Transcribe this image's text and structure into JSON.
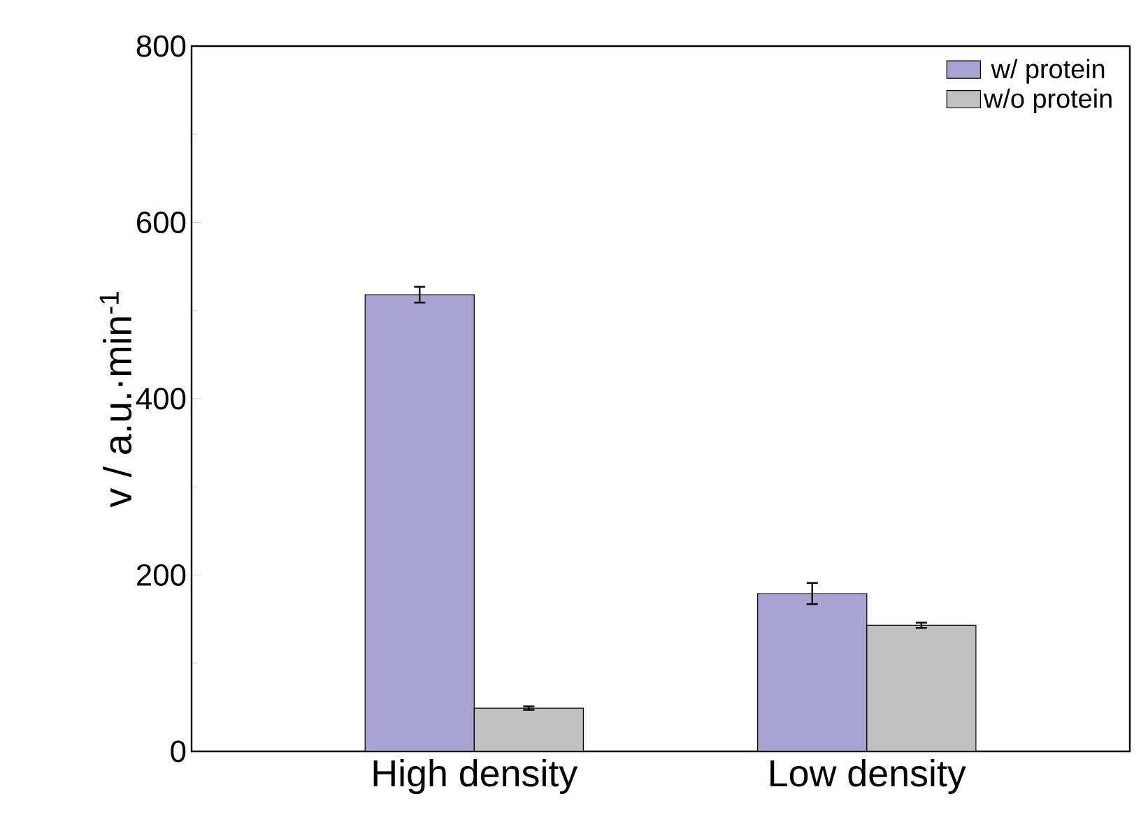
{
  "chart_data": {
    "type": "bar",
    "ylabel": "v / a.u.·min$^{-1}$",
    "categories": [
      "High density",
      "Low density"
    ],
    "series": [
      {
        "name": "w/ protein",
        "color": "#a9a3d1",
        "values": [
          518,
          179
        ],
        "errors": [
          9,
          12
        ]
      },
      {
        "name": "w/o protein",
        "color": "#c0c0c0",
        "values": [
          49,
          143
        ],
        "errors": [
          2,
          3
        ]
      }
    ],
    "ylim": [
      0,
      800
    ],
    "yticks": [
      0,
      200,
      400,
      600,
      800
    ],
    "legend": "top right",
    "grid": false
  }
}
